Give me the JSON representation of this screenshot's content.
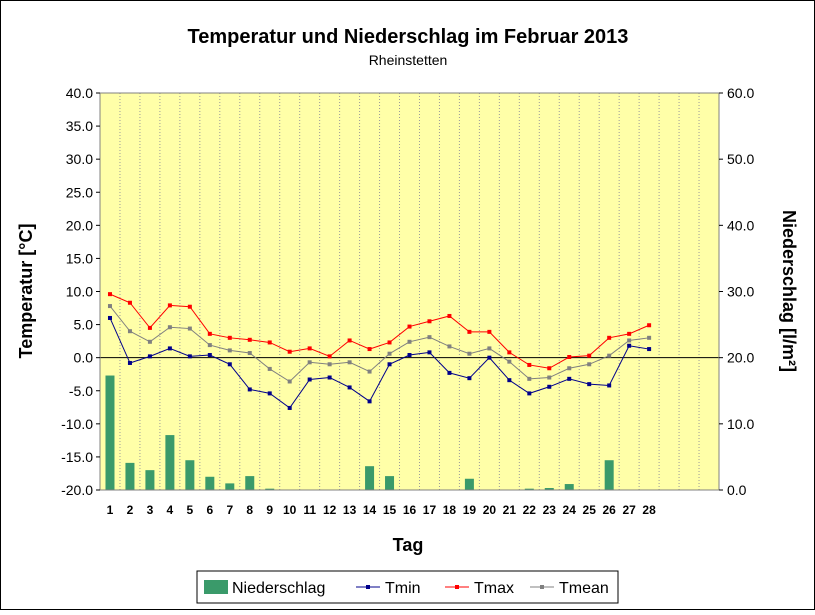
{
  "chart_data": {
    "type": "bar+line",
    "title": "Temperatur und Niederschlag im Februar 2013",
    "subtitle": "Rheinstetten",
    "xlabel": "Tag",
    "ylabel_left": "Temperatur [°C]",
    "ylabel_right": "Niederschlag [l/m²]",
    "ylim_left": [
      -20,
      40
    ],
    "ylim_right": [
      0,
      60
    ],
    "yticks_left": [
      "40.0",
      "35.0",
      "30.0",
      "25.0",
      "20.0",
      "15.0",
      "10.0",
      "5.0",
      "0.0",
      "-5.0",
      "-10.0",
      "-15.0",
      "-20.0"
    ],
    "yticks_right": [
      "60.0",
      "50.0",
      "40.0",
      "30.0",
      "20.0",
      "10.0",
      "0.0"
    ],
    "x_max": 31,
    "categories": [
      "1",
      "2",
      "3",
      "4",
      "5",
      "6",
      "7",
      "8",
      "9",
      "10",
      "11",
      "12",
      "13",
      "14",
      "15",
      "16",
      "17",
      "18",
      "19",
      "20",
      "21",
      "22",
      "23",
      "24",
      "25",
      "26",
      "27",
      "28"
    ],
    "legend_placement": "bottom",
    "plot_background": "#ffffa8",
    "grid": "vertical dotted",
    "series": [
      {
        "name": "Niederschlag",
        "type": "bar",
        "axis": "right",
        "color": "#3a9a6a",
        "values": [
          17.3,
          4.1,
          3.0,
          8.3,
          4.5,
          2.0,
          1.0,
          2.1,
          0.2,
          0,
          0,
          0,
          0,
          3.6,
          2.1,
          0,
          0,
          0,
          1.7,
          0,
          0,
          0.2,
          0.3,
          0.9,
          0,
          4.5,
          0,
          0
        ]
      },
      {
        "name": "Tmin",
        "type": "line",
        "axis": "left",
        "color": "#00008b",
        "values": [
          6.0,
          -0.8,
          0.2,
          1.4,
          0.2,
          0.4,
          -1.0,
          -4.8,
          -5.4,
          -7.6,
          -3.3,
          -3.0,
          -4.5,
          -6.6,
          -1.0,
          0.4,
          0.8,
          -2.3,
          -3.1,
          0.0,
          -3.4,
          -5.4,
          -4.4,
          -3.2,
          -4.0,
          -4.2,
          1.8,
          1.3
        ]
      },
      {
        "name": "Tmax",
        "type": "line",
        "axis": "left",
        "color": "#ff0000",
        "values": [
          9.6,
          8.3,
          4.5,
          7.9,
          7.7,
          3.6,
          3.0,
          2.7,
          2.3,
          0.9,
          1.4,
          0.2,
          2.6,
          1.3,
          2.3,
          4.7,
          5.5,
          6.3,
          3.9,
          3.9,
          0.8,
          -1.1,
          -1.6,
          0.1,
          0.3,
          3.0,
          3.6,
          4.9
        ]
      },
      {
        "name": "Tmean",
        "type": "line",
        "axis": "left",
        "color": "#808080",
        "values": [
          7.8,
          4.0,
          2.4,
          4.6,
          4.4,
          1.9,
          1.1,
          0.7,
          -1.7,
          -3.6,
          -0.7,
          -1.0,
          -0.7,
          -2.1,
          0.6,
          2.4,
          3.1,
          1.7,
          0.6,
          1.4,
          -0.6,
          -3.2,
          -3.0,
          -1.6,
          -1.0,
          0.3,
          2.6,
          3.0
        ]
      }
    ]
  }
}
